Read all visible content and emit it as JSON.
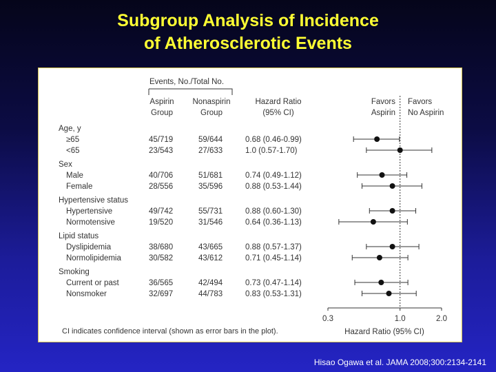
{
  "slide": {
    "title_line1": "Subgroup Analysis of Incidence",
    "title_line2": "of Atherosclerotic Events",
    "citation": "Hisao Ogawa et al. JAMA 2008;300:2134-2141"
  },
  "table": {
    "events_header": "Events, No./Total No.",
    "aspirin_header": [
      "Aspirin",
      "Group"
    ],
    "nonaspirin_header": [
      "Nonaspirin",
      "Group"
    ],
    "hr_header": [
      "Hazard Ratio",
      "(95% CI)"
    ],
    "favors_aspirin": [
      "Favors",
      "Aspirin"
    ],
    "favors_no_aspirin": [
      "Favors",
      "No Aspirin"
    ],
    "footnote": "CI indicates confidence interval (shown as error bars in the plot)."
  },
  "chart_data": {
    "type": "forest",
    "xlabel": "Hazard Ratio (95% CI)",
    "x_scale": "log",
    "xlim": [
      0.3,
      2.0
    ],
    "xticks": [
      {
        "value": 0.3,
        "label": "0.3"
      },
      {
        "value": 1.0,
        "label": "1.0"
      },
      {
        "value": 2.0,
        "label": "2.0"
      }
    ],
    "reference_line": 1.0,
    "groups": [
      {
        "label": "Age, y",
        "rows": [
          {
            "label": "≥65",
            "aspirin": "45/719",
            "nonaspirin": "59/644",
            "hr_text": "0.68 (0.46-0.99)",
            "hr": 0.68,
            "lo": 0.46,
            "hi": 0.99
          },
          {
            "label": "<65",
            "aspirin": "23/543",
            "nonaspirin": "27/633",
            "hr_text": "1.0 (0.57-1.70)",
            "hr": 1.0,
            "lo": 0.57,
            "hi": 1.7
          }
        ]
      },
      {
        "label": "Sex",
        "rows": [
          {
            "label": "Male",
            "aspirin": "40/706",
            "nonaspirin": "51/681",
            "hr_text": "0.74 (0.49-1.12)",
            "hr": 0.74,
            "lo": 0.49,
            "hi": 1.12
          },
          {
            "label": "Female",
            "aspirin": "28/556",
            "nonaspirin": "35/596",
            "hr_text": "0.88 (0.53-1.44)",
            "hr": 0.88,
            "lo": 0.53,
            "hi": 1.44
          }
        ]
      },
      {
        "label": "Hypertensive status",
        "rows": [
          {
            "label": "Hypertensive",
            "aspirin": "49/742",
            "nonaspirin": "55/731",
            "hr_text": "0.88 (0.60-1.30)",
            "hr": 0.88,
            "lo": 0.6,
            "hi": 1.3
          },
          {
            "label": "Normotensive",
            "aspirin": "19/520",
            "nonaspirin": "31/546",
            "hr_text": "0.64 (0.36-1.13)",
            "hr": 0.64,
            "lo": 0.36,
            "hi": 1.13
          }
        ]
      },
      {
        "label": "Lipid status",
        "rows": [
          {
            "label": "Dyslipidemia",
            "aspirin": "38/680",
            "nonaspirin": "43/665",
            "hr_text": "0.88 (0.57-1.37)",
            "hr": 0.88,
            "lo": 0.57,
            "hi": 1.37
          },
          {
            "label": "Normolipidemia",
            "aspirin": "30/582",
            "nonaspirin": "43/612",
            "hr_text": "0.71 (0.45-1.14)",
            "hr": 0.71,
            "lo": 0.45,
            "hi": 1.14
          }
        ]
      },
      {
        "label": "Smoking",
        "rows": [
          {
            "label": "Current or past",
            "aspirin": "36/565",
            "nonaspirin": "42/494",
            "hr_text": "0.73 (0.47-1.14)",
            "hr": 0.73,
            "lo": 0.47,
            "hi": 1.14
          },
          {
            "label": "Nonsmoker",
            "aspirin": "32/697",
            "nonaspirin": "44/783",
            "hr_text": "0.83 (0.53-1.31)",
            "hr": 0.83,
            "lo": 0.53,
            "hi": 1.31
          }
        ]
      }
    ]
  },
  "colors": {
    "title": "#ffff33",
    "text": "#333333",
    "marker": "#111111",
    "ci_line": "#333333"
  }
}
